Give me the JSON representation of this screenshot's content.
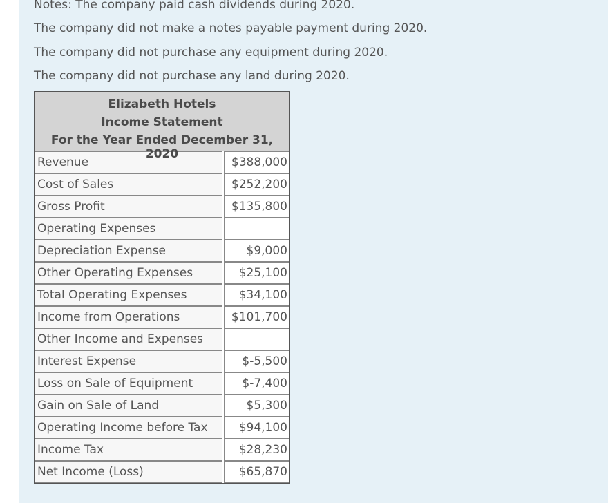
{
  "notes": [
    "Notes: The company paid cash dividends during 2020.",
    "The company did not make a notes payable payment during 2020.",
    "The company did not purchase any equipment during 2020.",
    "The company did not purchase any land during 2020."
  ],
  "table": {
    "title": [
      "Elizabeth Hotels",
      "Income Statement",
      "For the Year Ended December 31, 2020"
    ],
    "rows": [
      {
        "label": "Revenue",
        "value": "$388,000"
      },
      {
        "label": "Cost of Sales",
        "value": "$252,200"
      },
      {
        "label": "Gross Profit",
        "value": "$135,800"
      },
      {
        "label": "Operating Expenses"
      },
      {
        "label": "Depreciation Expense",
        "value": "$9,000"
      },
      {
        "label": "Other Operating Expenses",
        "value": "$25,100"
      },
      {
        "label": "Total Operating Expenses",
        "value": "$34,100"
      },
      {
        "label": "Income from Operations",
        "value": "$101,700"
      },
      {
        "label": "Other Income and Expenses"
      },
      {
        "label": "Interest Expense",
        "value": "$-5,500"
      },
      {
        "label": "Loss on Sale of Equipment",
        "value": "$-7,400"
      },
      {
        "label": "Gain on Sale of Land",
        "value": "$5,300"
      },
      {
        "label": "Operating Income before Tax",
        "value": "$94,100"
      },
      {
        "label": "Income Tax",
        "value": "$28,230"
      },
      {
        "label": "Net Income (Loss)",
        "value": "$65,870"
      }
    ]
  }
}
